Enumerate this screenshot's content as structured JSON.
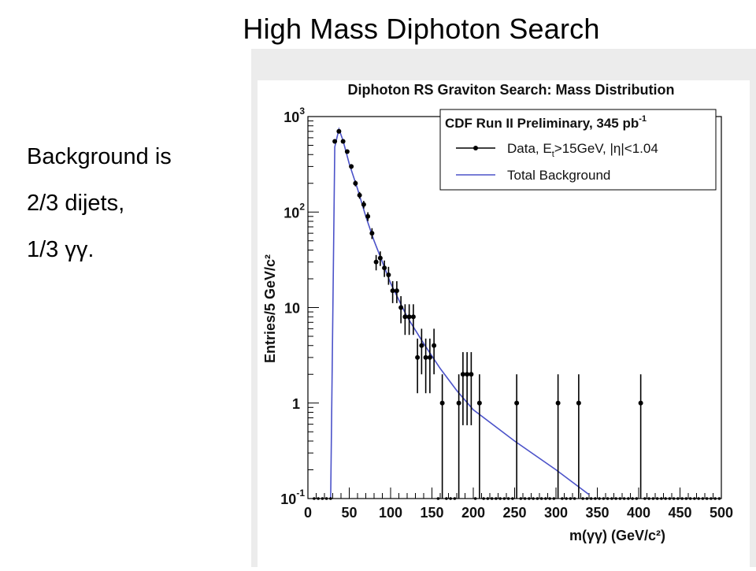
{
  "slide": {
    "title": "High Mass Diphoton Search",
    "bullets": [
      "Background is",
      "2/3 dijets,",
      "1/3 γγ."
    ]
  },
  "chart_data": {
    "type": "scatter",
    "title": "Diphoton RS Graviton Search: Mass Distribution",
    "xlabel": "m(γγ) (GeV/c²)",
    "ylabel": "Entries/5 GeV/c²",
    "xlim": [
      0,
      500
    ],
    "ylim": [
      0.1,
      1000
    ],
    "yscale": "log",
    "xticks": [
      0,
      50,
      100,
      150,
      200,
      250,
      300,
      350,
      400,
      450,
      500
    ],
    "yticks": [
      {
        "value": 0.1,
        "base": "10",
        "exp": "-1"
      },
      {
        "value": 1,
        "base": "1",
        "exp": ""
      },
      {
        "value": 10,
        "base": "10",
        "exp": ""
      },
      {
        "value": 100,
        "base": "10",
        "exp": "2"
      },
      {
        "value": 1000,
        "base": "10",
        "exp": "3"
      }
    ],
    "legend": {
      "header": "CDF Run II Preliminary, 345 pb",
      "header_sup": "-1",
      "placement": "top-right",
      "items": [
        {
          "key": "data",
          "label": "Data, E",
          "sub": "t",
          "rest": ">15GeV, |η|<1.04"
        },
        {
          "key": "background",
          "label": "Total Background"
        }
      ]
    },
    "colors": {
      "data": "#000000",
      "background": "#4b52c9"
    },
    "series": [
      {
        "name": "Data, Et>15GeV, |η|<1.04",
        "x": [
          32.5,
          37.5,
          42.5,
          47.5,
          52.5,
          57.5,
          62.5,
          67.5,
          72.5,
          77.5,
          82.5,
          87.5,
          92.5,
          97.5,
          102.5,
          107.5,
          112.5,
          117.5,
          122.5,
          127.5,
          132.5,
          137.5,
          142.5,
          147.5,
          152.5,
          162.5,
          182.5,
          187.5,
          192.5,
          197.5,
          207.5,
          252.5,
          302.5,
          327.5,
          402.5
        ],
        "y": [
          550,
          700,
          550,
          430,
          300,
          200,
          150,
          120,
          90,
          60,
          30,
          33,
          26,
          22,
          15,
          15,
          10,
          8,
          8,
          8,
          3,
          4,
          3,
          3,
          4,
          1,
          1,
          2,
          2,
          2,
          1,
          1,
          1,
          1,
          1
        ]
      },
      {
        "name": "Total Background",
        "x": [
          27.5,
          32.5,
          37.5,
          42.5,
          50,
          60,
          70,
          80,
          90,
          100,
          120,
          140,
          160,
          180,
          200,
          250,
          300,
          340
        ],
        "y": [
          0.1,
          480,
          740,
          560,
          320,
          175,
          90,
          50,
          30,
          18,
          8,
          4.2,
          2.3,
          1.35,
          0.85,
          0.4,
          0.2,
          0.11
        ]
      }
    ],
    "zero_bin_value": 0.1
  }
}
